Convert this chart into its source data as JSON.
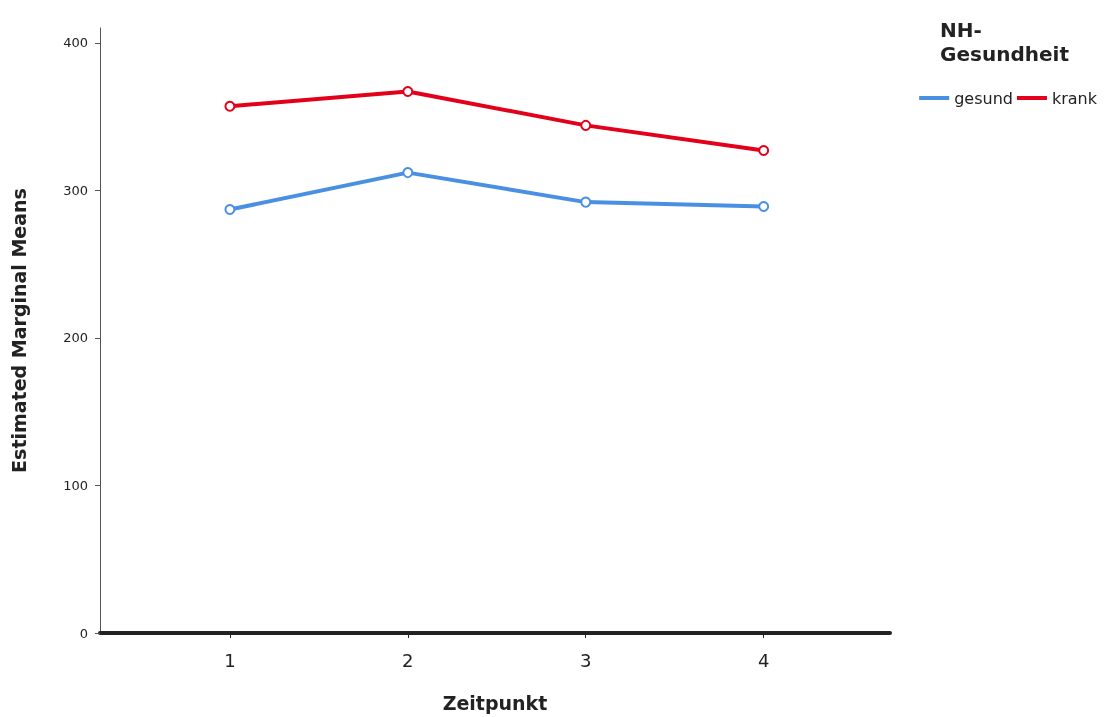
{
  "chart_data": {
    "type": "line",
    "xlabel": "Zeitpunkt",
    "ylabel": "Estimated Marginal Means",
    "legend_title": "NH-Gesundheit",
    "x": [
      1,
      2,
      3,
      4
    ],
    "xlim": [
      0.27,
      4.71
    ],
    "xticks": [
      1,
      2,
      3,
      4
    ],
    "ylim": [
      0,
      410
    ],
    "yticks": [
      0,
      100,
      200,
      300,
      400
    ],
    "series": [
      {
        "name": "gesund",
        "color": "#4a90e2",
        "values": [
          287,
          312,
          292,
          289
        ]
      },
      {
        "name": "krank",
        "color": "#e3001b",
        "values": [
          357,
          367,
          344,
          327
        ]
      }
    ],
    "marker": "circle",
    "line_style": "solid",
    "grid": false,
    "legend": "top right"
  }
}
